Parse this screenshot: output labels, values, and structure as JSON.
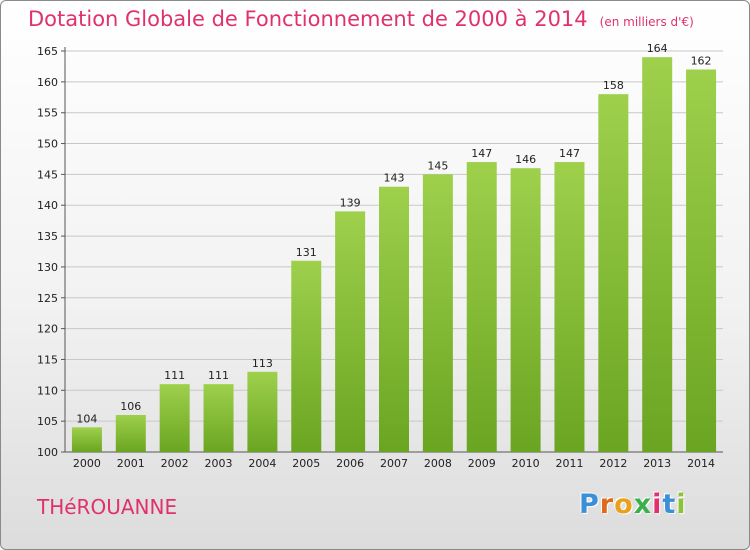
{
  "title": "Dotation Globale de Fonctionnement de 2000 à 2014",
  "subtitle": "(en milliers d'€)",
  "commune": "THéROUANNE",
  "logo": {
    "letters": [
      "P",
      "r",
      "o",
      "x",
      "i",
      "t",
      "i"
    ],
    "colors": [
      "#3a8fd6",
      "#e06a1a",
      "#e8a21a",
      "#3ab04a",
      "#e0316e",
      "#3a8fd6",
      "#8ac23a"
    ]
  },
  "colors": {
    "bar_light": "#9ed04c",
    "bar_dark": "#6aa521",
    "grid": "#c8c8c8",
    "title": "#e0316e"
  },
  "chart_data": {
    "type": "bar",
    "categories": [
      "2000",
      "2001",
      "2002",
      "2003",
      "2004",
      "2005",
      "2006",
      "2007",
      "2008",
      "2009",
      "2010",
      "2011",
      "2012",
      "2013",
      "2014"
    ],
    "values": [
      104,
      106,
      111,
      111,
      113,
      131,
      139,
      143,
      145,
      147,
      146,
      147,
      158,
      164,
      162
    ],
    "ylim": [
      100,
      165
    ],
    "yticks": [
      100,
      105,
      110,
      115,
      120,
      125,
      130,
      135,
      140,
      145,
      150,
      155,
      160,
      165
    ],
    "grid": true,
    "xlabel": "",
    "ylabel": ""
  }
}
